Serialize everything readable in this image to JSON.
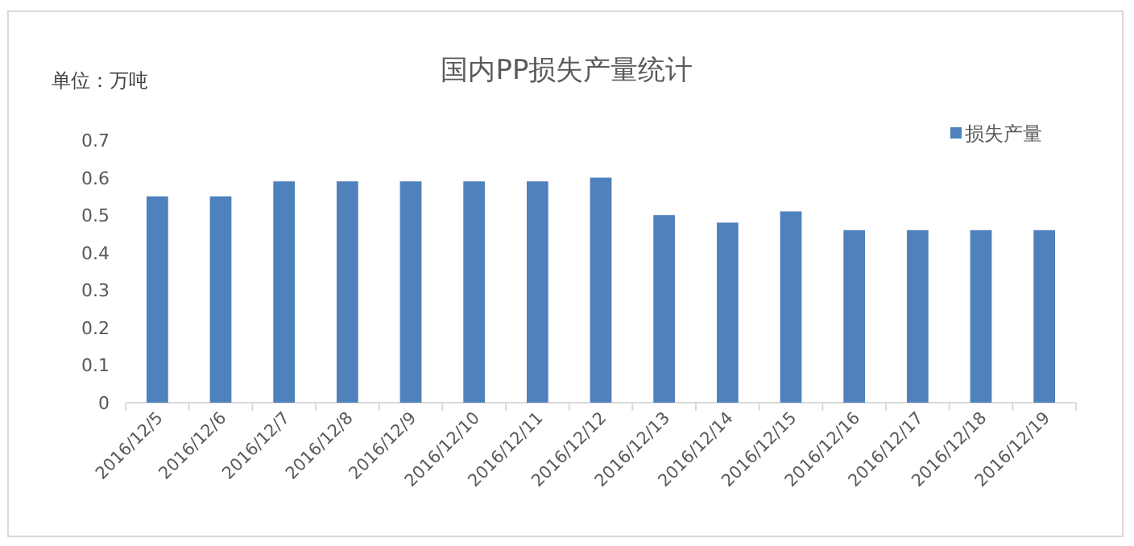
{
  "chart_data": {
    "type": "bar",
    "title": "国内PP损失产量统计",
    "ylabel": "单位：万吨",
    "categories": [
      "2016/12/5",
      "2016/12/6",
      "2016/12/7",
      "2016/12/8",
      "2016/12/9",
      "2016/12/10",
      "2016/12/11",
      "2016/12/12",
      "2016/12/13",
      "2016/12/14",
      "2016/12/15",
      "2016/12/16",
      "2016/12/17",
      "2016/12/18",
      "2016/12/19"
    ],
    "series": [
      {
        "name": "损失产量",
        "color": "#4f81bd",
        "values": [
          0.55,
          0.55,
          0.59,
          0.59,
          0.59,
          0.59,
          0.59,
          0.6,
          0.5,
          0.48,
          0.51,
          0.46,
          0.46,
          0.46,
          0.46
        ]
      }
    ],
    "ylim": [
      0,
      0.7
    ],
    "yticks": [
      0,
      0.1,
      0.2,
      0.3,
      0.4,
      0.5,
      0.6,
      0.7
    ],
    "legend": "top right",
    "grid": false
  }
}
